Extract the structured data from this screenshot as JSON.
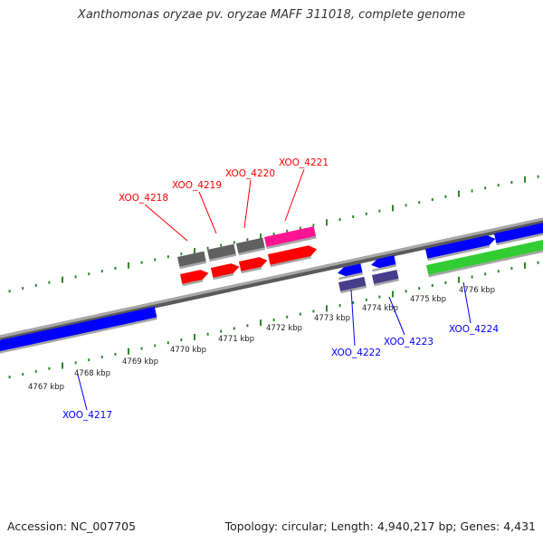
{
  "title": "Xanthomonas oryzae pv. oryzae MAFF 311018, complete genome",
  "footer": {
    "accession": "Accession: NC_007705",
    "summary": "Topology: circular; Length: 4,940,217 bp; Genes: 4,431"
  },
  "colors": {
    "backbone": "#8a8a8a",
    "tick": "#2a8a2a",
    "gene_red": "#ff0000",
    "gene_blue": "#0000ff",
    "gene_gray": "#606060",
    "gene_pink": "#ff1493",
    "gene_slate": "#483d8b",
    "gene_green": "#32cd32"
  },
  "scale_labels": [
    "4767 kbp",
    "4768 kbp",
    "4769 kbp",
    "4770 kbp",
    "4771 kbp",
    "4772 kbp",
    "4773 kbp",
    "4774 kbp",
    "4775 kbp",
    "4776 kbp"
  ],
  "gene_labels": [
    {
      "id": "xoo4217",
      "text": "XOO_4217",
      "color": "blue"
    },
    {
      "id": "xoo4218",
      "text": "XOO_4218",
      "color": "red"
    },
    {
      "id": "xoo4219",
      "text": "XOO_4219",
      "color": "red"
    },
    {
      "id": "xoo4220",
      "text": "XOO_4220",
      "color": "red"
    },
    {
      "id": "xoo4221",
      "text": "XOO_4221",
      "color": "red"
    },
    {
      "id": "xoo4222",
      "text": "XOO_4222",
      "color": "blue"
    },
    {
      "id": "xoo4223",
      "text": "XOO_4223",
      "color": "blue"
    },
    {
      "id": "xoo4224",
      "text": "XOO_4224",
      "color": "blue"
    }
  ]
}
